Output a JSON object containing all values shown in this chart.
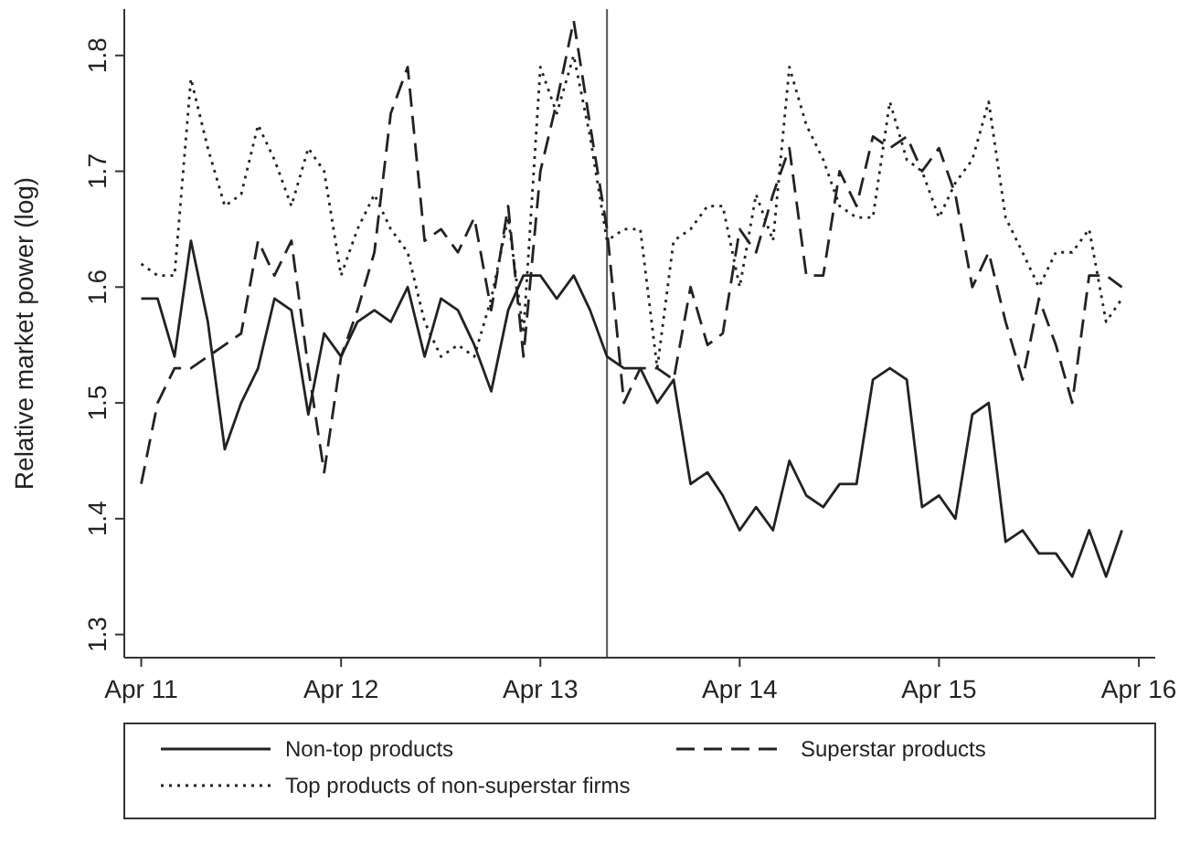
{
  "chart_data": {
    "type": "line",
    "ylabel": "Relative market power (log)",
    "x": [
      "2011-04",
      "2011-05",
      "2011-06",
      "2011-07",
      "2011-08",
      "2011-09",
      "2011-10",
      "2011-11",
      "2011-12",
      "2012-01",
      "2012-02",
      "2012-03",
      "2012-04",
      "2012-05",
      "2012-06",
      "2012-07",
      "2012-08",
      "2012-09",
      "2012-10",
      "2012-11",
      "2012-12",
      "2013-01",
      "2013-02",
      "2013-03",
      "2013-04",
      "2013-05",
      "2013-06",
      "2013-07",
      "2013-08",
      "2013-09",
      "2013-10",
      "2013-11",
      "2013-12",
      "2014-01",
      "2014-02",
      "2014-03",
      "2014-04",
      "2014-05",
      "2014-06",
      "2014-07",
      "2014-08",
      "2014-09",
      "2014-10",
      "2014-11",
      "2014-12",
      "2015-01",
      "2015-02",
      "2015-03",
      "2015-04",
      "2015-05",
      "2015-06",
      "2015-07",
      "2015-08",
      "2015-09",
      "2015-10",
      "2015-11",
      "2015-12",
      "2016-01",
      "2016-02",
      "2016-03"
    ],
    "series": [
      {
        "name": "Non-top products",
        "color": "#222222",
        "line_style": "solid",
        "values": [
          1.59,
          1.59,
          1.54,
          1.64,
          1.57,
          1.46,
          1.5,
          1.53,
          1.59,
          1.58,
          1.49,
          1.56,
          1.54,
          1.57,
          1.58,
          1.57,
          1.6,
          1.54,
          1.59,
          1.58,
          1.55,
          1.51,
          1.58,
          1.61,
          1.61,
          1.59,
          1.61,
          1.58,
          1.54,
          1.53,
          1.53,
          1.5,
          1.52,
          1.43,
          1.44,
          1.42,
          1.39,
          1.41,
          1.39,
          1.45,
          1.42,
          1.41,
          1.43,
          1.43,
          1.52,
          1.53,
          1.52,
          1.41,
          1.42,
          1.4,
          1.49,
          1.5,
          1.38,
          1.39,
          1.37,
          1.37,
          1.35,
          1.39,
          1.35,
          1.39
        ]
      },
      {
        "name": "Superstar products",
        "color": "#222222",
        "line_style": "dashed",
        "values": [
          1.43,
          1.5,
          1.53,
          1.53,
          1.54,
          1.55,
          1.56,
          1.64,
          1.61,
          1.64,
          1.53,
          1.44,
          1.54,
          1.58,
          1.63,
          1.75,
          1.79,
          1.64,
          1.65,
          1.63,
          1.66,
          1.58,
          1.67,
          1.54,
          1.7,
          1.76,
          1.83,
          1.74,
          1.65,
          1.5,
          1.53,
          1.53,
          1.52,
          1.6,
          1.55,
          1.56,
          1.65,
          1.63,
          1.68,
          1.72,
          1.61,
          1.61,
          1.7,
          1.67,
          1.73,
          1.72,
          1.73,
          1.7,
          1.72,
          1.68,
          1.6,
          1.63,
          1.57,
          1.52,
          1.59,
          1.55,
          1.5,
          1.61,
          1.61,
          1.6
        ]
      },
      {
        "name": "Top products of non-superstar firms",
        "color": "#222222",
        "line_style": "dotted",
        "values": [
          1.62,
          1.61,
          1.61,
          1.78,
          1.72,
          1.67,
          1.68,
          1.74,
          1.71,
          1.67,
          1.72,
          1.7,
          1.61,
          1.65,
          1.68,
          1.65,
          1.63,
          1.57,
          1.54,
          1.55,
          1.54,
          1.59,
          1.66,
          1.56,
          1.79,
          1.75,
          1.8,
          1.73,
          1.64,
          1.65,
          1.65,
          1.53,
          1.64,
          1.65,
          1.67,
          1.67,
          1.6,
          1.68,
          1.64,
          1.79,
          1.74,
          1.71,
          1.67,
          1.66,
          1.66,
          1.76,
          1.71,
          1.7,
          1.66,
          1.69,
          1.71,
          1.76,
          1.66,
          1.63,
          1.6,
          1.63,
          1.63,
          1.65,
          1.57,
          1.59
        ]
      }
    ],
    "xlim": [
      "2011-03",
      "2016-05"
    ],
    "xticks": [
      {
        "value": "2011-04",
        "label": "Apr 11"
      },
      {
        "value": "2012-04",
        "label": "Apr 12"
      },
      {
        "value": "2013-04",
        "label": "Apr 13"
      },
      {
        "value": "2014-04",
        "label": "Apr 14"
      },
      {
        "value": "2015-04",
        "label": "Apr 15"
      },
      {
        "value": "2016-04",
        "label": "Apr 16"
      }
    ],
    "ylim": [
      1.28,
      1.84
    ],
    "yticks": [
      1.3,
      1.4,
      1.5,
      1.6,
      1.7,
      1.8
    ],
    "ref_lines": [
      {
        "axis": "x",
        "value": "2013-08",
        "color": "#555555"
      }
    ],
    "grid": false,
    "legend": "bottom"
  }
}
